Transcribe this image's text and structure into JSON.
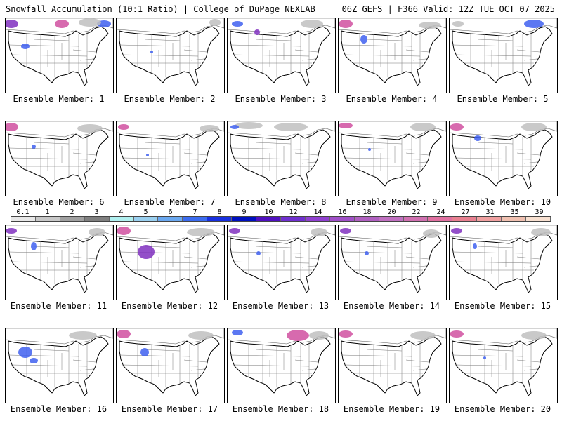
{
  "header": {
    "left": "Snowfall Accumulation (10:1 Ratio) | College of DuPage NEXLAB",
    "right": "06Z GEFS | F366 Valid: 12Z TUE OCT 07 2025"
  },
  "caption_prefix": "Ensemble Member:",
  "members": [
    {
      "label": "Ensemble Member: 1"
    },
    {
      "label": "Ensemble Member: 2"
    },
    {
      "label": "Ensemble Member: 3"
    },
    {
      "label": "Ensemble Member: 4"
    },
    {
      "label": "Ensemble Member: 5"
    },
    {
      "label": "Ensemble Member: 6"
    },
    {
      "label": "Ensemble Member: 7"
    },
    {
      "label": "Ensemble Member: 8"
    },
    {
      "label": "Ensemble Member: 9"
    },
    {
      "label": "Ensemble Member: 10"
    },
    {
      "label": "Ensemble Member: 11"
    },
    {
      "label": "Ensemble Member: 12"
    },
    {
      "label": "Ensemble Member: 13"
    },
    {
      "label": "Ensemble Member: 14"
    },
    {
      "label": "Ensemble Member: 15"
    },
    {
      "label": "Ensemble Member: 16"
    },
    {
      "label": "Ensemble Member: 17"
    },
    {
      "label": "Ensemble Member: 18"
    },
    {
      "label": "Ensemble Member: 19"
    },
    {
      "label": "Ensemble Member: 20"
    }
  ],
  "colorbar": {
    "labels": [
      "0.1",
      "1",
      "2",
      "3",
      "4",
      "5",
      "6",
      "7",
      "8",
      "9",
      "10",
      "12",
      "14",
      "16",
      "18",
      "20",
      "22",
      "24",
      "27",
      "31",
      "35",
      "39"
    ],
    "colors": [
      "#e8e8e8",
      "#c8c8c8",
      "#a0a0a0",
      "#808080",
      "#b0f0f0",
      "#9ad0f0",
      "#6aa8f0",
      "#3c6cf0",
      "#1830e0",
      "#0010c0",
      "#5010c0",
      "#7030d0",
      "#9040d0",
      "#a050c8",
      "#b060c0",
      "#c070c0",
      "#d070b0",
      "#e070a0",
      "#e88090",
      "#f0a0a0",
      "#f0c0b0",
      "#f8e0d0"
    ]
  },
  "colors": {
    "snow_light": "#c0c0c0",
    "snow_blue": "#4060f0",
    "snow_purple": "#8030c0",
    "snow_magenta": "#d050a0"
  }
}
